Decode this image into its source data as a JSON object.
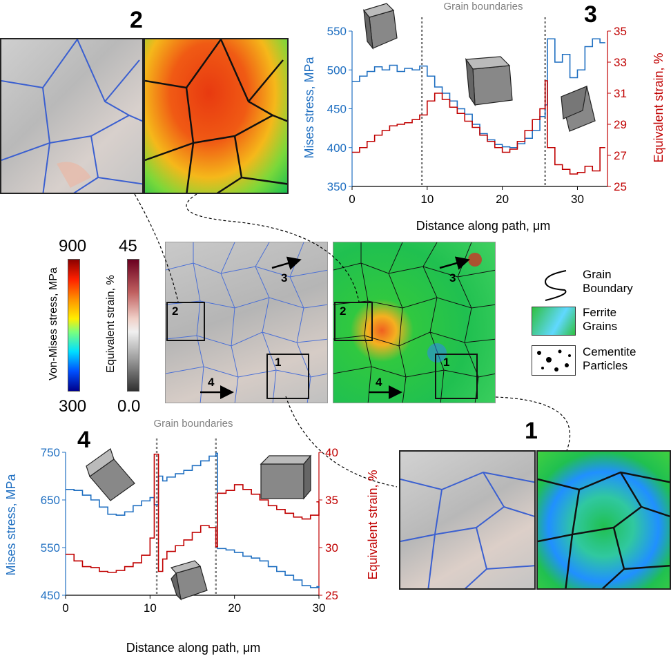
{
  "labels": {
    "inset2": "2",
    "inset3": "3",
    "inset4": "4",
    "inset1": "1",
    "map_marker_1": "1",
    "map_marker_2": "2",
    "map_marker_3": "3",
    "map_marker_4": "4"
  },
  "colorbars": {
    "stress": {
      "label": "Von-Mises stress, MPa",
      "max": "900",
      "min": "300"
    },
    "strain": {
      "label": "Equivalent strain, %",
      "max": "45",
      "min": "0.0"
    }
  },
  "legend": {
    "grain_boundary": [
      "Grain",
      "Boundary"
    ],
    "ferrite": [
      "Ferrite",
      "Grains"
    ],
    "cementite": [
      "Cementite",
      "Particles"
    ]
  },
  "colors": {
    "stress": "#1f6fc1",
    "strain": "#c00000",
    "boundary_line": "#808080"
  },
  "chart_data": [
    {
      "id": "3",
      "type": "line",
      "annotation": "Grain boundaries",
      "xlabel": "Distance along path, μm",
      "ylabel": "Mises stress, MPa",
      "ylabel2": "Equivalent strain, %",
      "xlim": [
        0,
        34
      ],
      "ylim": [
        350,
        550
      ],
      "ylim2": [
        25,
        35
      ],
      "xticks": [
        0,
        10,
        20,
        30
      ],
      "yticks": [
        350,
        400,
        450,
        500,
        550
      ],
      "yticks2": [
        25,
        27,
        29,
        31,
        33,
        35
      ],
      "boundaries_x": [
        9.3,
        25.7
      ],
      "series": [
        {
          "axis": "left",
          "x": [
            0,
            1,
            2,
            3,
            4,
            5,
            6,
            7,
            8,
            9,
            10,
            11,
            12,
            13,
            14,
            15,
            16,
            17,
            18,
            19,
            20,
            21,
            22,
            23,
            24,
            25,
            25.7,
            26,
            27,
            28,
            29,
            30,
            31,
            32,
            33
          ],
          "y": [
            485,
            492,
            498,
            504,
            500,
            506,
            498,
            502,
            500,
            505,
            492,
            478,
            470,
            460,
            450,
            443,
            430,
            418,
            410,
            404,
            401,
            400,
            405,
            412,
            422,
            440,
            455,
            540,
            510,
            520,
            490,
            500,
            530,
            540,
            535
          ]
        },
        {
          "axis": "right",
          "x": [
            0,
            1,
            2,
            3,
            4,
            5,
            6,
            7,
            8,
            9,
            10,
            11,
            12,
            13,
            14,
            15,
            16,
            17,
            18,
            19,
            20,
            21,
            22,
            23,
            24,
            25,
            25.7,
            26,
            27,
            28,
            29,
            30,
            31,
            32,
            33
          ],
          "y": [
            27.2,
            27.5,
            27.9,
            28.3,
            28.6,
            28.9,
            29.0,
            29.1,
            29.3,
            29.6,
            30.5,
            31.0,
            30.6,
            30.1,
            29.7,
            29.2,
            28.8,
            28.3,
            27.9,
            27.5,
            27.2,
            27.4,
            27.9,
            28.6,
            29.3,
            30.0,
            31.8,
            27.5,
            26.4,
            26.1,
            25.8,
            25.9,
            26.3,
            26.0,
            27.5
          ]
        }
      ]
    },
    {
      "id": "4",
      "type": "line",
      "annotation": "Grain boundaries",
      "xlabel": "Distance along path, μm",
      "ylabel": "Mises stress, MPa",
      "ylabel2": "Equivalent strain, %",
      "xlim": [
        0,
        30
      ],
      "ylim": [
        450,
        750
      ],
      "ylim2": [
        25,
        40
      ],
      "xticks": [
        0,
        10,
        20,
        30
      ],
      "yticks": [
        450,
        550,
        650,
        750
      ],
      "yticks2": [
        25,
        30,
        35,
        40
      ],
      "boundaries_x": [
        10.8,
        17.8
      ],
      "series": [
        {
          "axis": "left",
          "x": [
            0,
            1,
            2,
            3,
            4,
            5,
            6,
            7,
            8,
            9,
            10,
            10.5,
            11,
            11.5,
            12,
            13,
            14,
            15,
            16,
            17,
            17.8,
            18,
            19,
            20,
            21,
            22,
            23,
            24,
            25,
            26,
            27,
            28,
            29,
            30
          ],
          "y": [
            672,
            670,
            660,
            650,
            635,
            620,
            618,
            625,
            638,
            648,
            655,
            640,
            700,
            690,
            698,
            705,
            712,
            722,
            732,
            742,
            748,
            548,
            545,
            540,
            532,
            528,
            522,
            510,
            500,
            492,
            482,
            470,
            466,
            468
          ]
        },
        {
          "axis": "right",
          "x": [
            0,
            1,
            2,
            3,
            4,
            5,
            6,
            7,
            8,
            9,
            10,
            10.5,
            11,
            11.5,
            12,
            13,
            14,
            15,
            16,
            17,
            17.8,
            18,
            19,
            20,
            21,
            22,
            23,
            24,
            25,
            26,
            27,
            28,
            29,
            30
          ],
          "y": [
            29.3,
            28.6,
            28.0,
            27.9,
            27.5,
            27.4,
            27.6,
            28.0,
            28.4,
            29.2,
            31.0,
            39.8,
            27.5,
            28.8,
            29.6,
            30.2,
            30.8,
            31.6,
            32.3,
            32.1,
            30.1,
            35.7,
            36.0,
            36.6,
            36.1,
            35.6,
            35.0,
            34.4,
            34.0,
            33.6,
            33.2,
            33.0,
            33.4,
            34.8
          ]
        }
      ]
    }
  ]
}
